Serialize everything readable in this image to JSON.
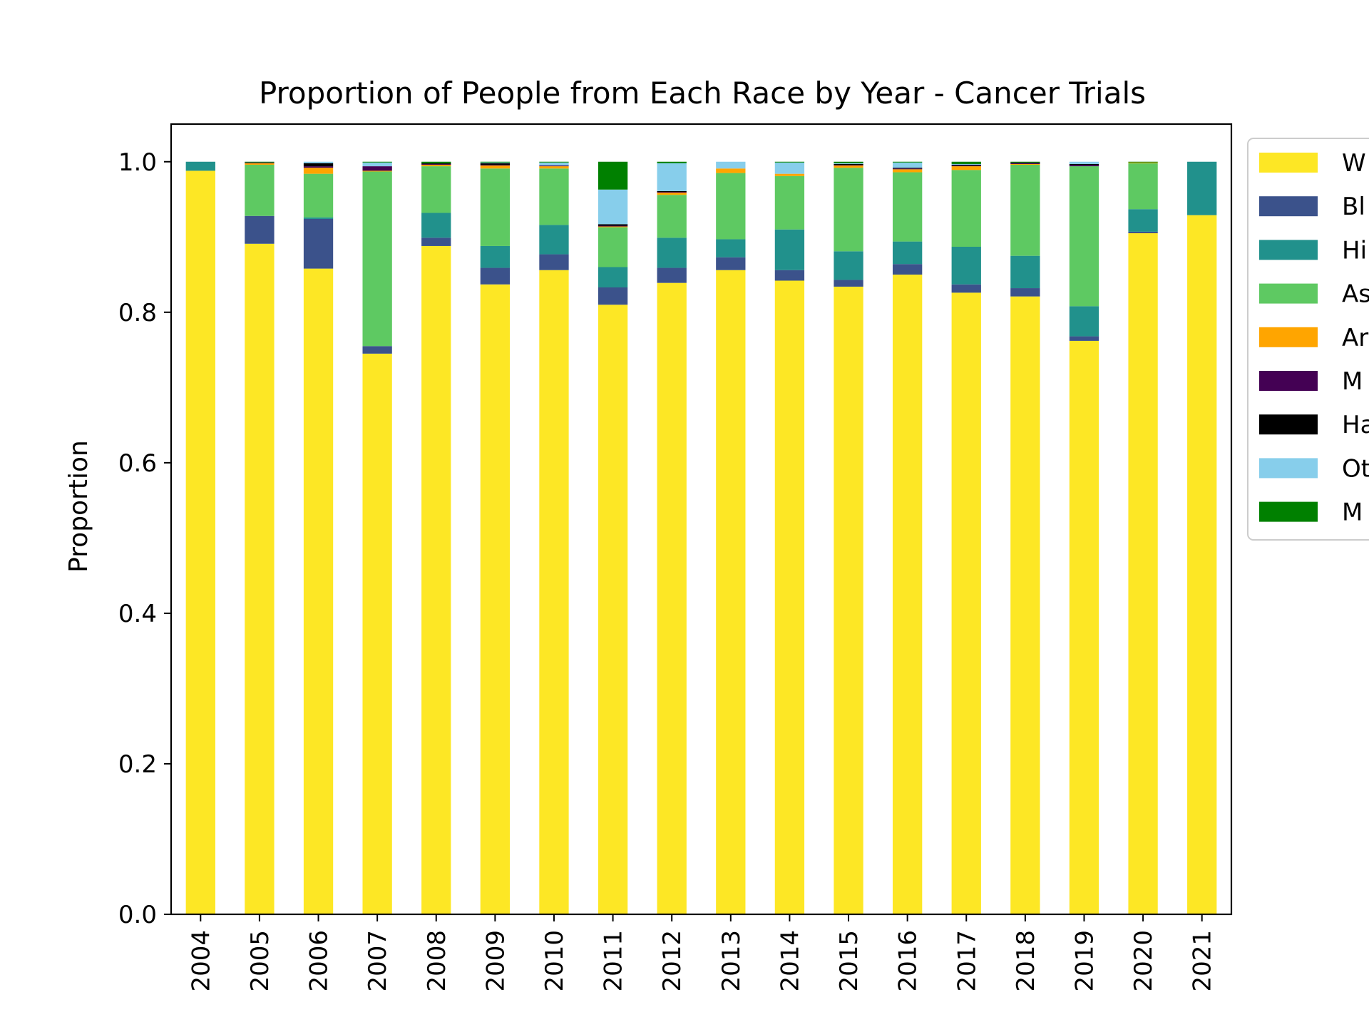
{
  "chart_data": {
    "type": "bar",
    "stacked": true,
    "title": "Proportion of People from Each Race by Year - Cancer Trials",
    "xlabel": "",
    "ylabel": "Proportion",
    "ylim": [
      0,
      1.05
    ],
    "yticks": [
      "0.0",
      "0.2",
      "0.4",
      "0.6",
      "0.8",
      "1.0"
    ],
    "ytick_values": [
      0,
      0.2,
      0.4,
      0.6,
      0.8,
      1.0
    ],
    "grid": false,
    "legend_placement": "right, outside plot (cut off at image edge)",
    "categories": [
      "2004",
      "2005",
      "2006",
      "2007",
      "2008",
      "2009",
      "2010",
      "2011",
      "2012",
      "2013",
      "2014",
      "2015",
      "2016",
      "2017",
      "2018",
      "2019",
      "2020",
      "2021"
    ],
    "series": [
      {
        "name": "W",
        "color": "#fde725",
        "values": [
          0.988,
          0.891,
          0.858,
          0.745,
          0.888,
          0.837,
          0.856,
          0.81,
          0.839,
          0.856,
          0.842,
          0.834,
          0.85,
          0.826,
          0.821,
          0.762,
          0.905,
          0.929
        ]
      },
      {
        "name": "Bl",
        "color": "#3b528b",
        "values": [
          0.0,
          0.037,
          0.066,
          0.01,
          0.011,
          0.022,
          0.021,
          0.023,
          0.02,
          0.017,
          0.014,
          0.009,
          0.014,
          0.011,
          0.011,
          0.006,
          0.002,
          0.0
        ]
      },
      {
        "name": "Hi",
        "color": "#21918c",
        "values": [
          0.012,
          0.0,
          0.002,
          0.0,
          0.033,
          0.029,
          0.039,
          0.027,
          0.04,
          0.024,
          0.054,
          0.038,
          0.03,
          0.05,
          0.043,
          0.04,
          0.03,
          0.071
        ]
      },
      {
        "name": "As",
        "color": "#5ec962",
        "values": [
          0.0,
          0.068,
          0.058,
          0.232,
          0.062,
          0.103,
          0.075,
          0.053,
          0.057,
          0.088,
          0.071,
          0.111,
          0.092,
          0.102,
          0.121,
          0.186,
          0.061,
          0.0
        ]
      },
      {
        "name": "Ar",
        "color": "#ffa500",
        "values": [
          0.0,
          0.002,
          0.008,
          0.001,
          0.002,
          0.004,
          0.003,
          0.001,
          0.003,
          0.006,
          0.003,
          0.003,
          0.004,
          0.005,
          0.001,
          0.0,
          0.001,
          0.0
        ]
      },
      {
        "name": "M",
        "color": "#440154",
        "values": [
          0.0,
          0.001,
          0.002,
          0.006,
          0.001,
          0.001,
          0.001,
          0.001,
          0.001,
          0.0,
          0.0,
          0.001,
          0.001,
          0.001,
          0.001,
          0.002,
          0.0,
          0.0
        ]
      },
      {
        "name": "Ha",
        "color": "#000000",
        "values": [
          0.0,
          0.0,
          0.004,
          0.0,
          0.001,
          0.002,
          0.0,
          0.002,
          0.001,
          0.0,
          0.0,
          0.001,
          0.001,
          0.001,
          0.001,
          0.001,
          0.0,
          0.0
        ]
      },
      {
        "name": "Ot",
        "color": "#87ceeb",
        "values": [
          0.0,
          0.0,
          0.002,
          0.005,
          0.0,
          0.001,
          0.004,
          0.046,
          0.037,
          0.009,
          0.015,
          0.001,
          0.007,
          0.001,
          0.0,
          0.003,
          0.0,
          0.0
        ]
      },
      {
        "name": "M",
        "color": "#008000",
        "values": [
          0.0,
          0.001,
          0.0,
          0.001,
          0.002,
          0.001,
          0.001,
          0.037,
          0.002,
          0.0,
          0.001,
          0.002,
          0.001,
          0.003,
          0.001,
          0.0,
          0.001,
          0.0
        ]
      }
    ]
  }
}
